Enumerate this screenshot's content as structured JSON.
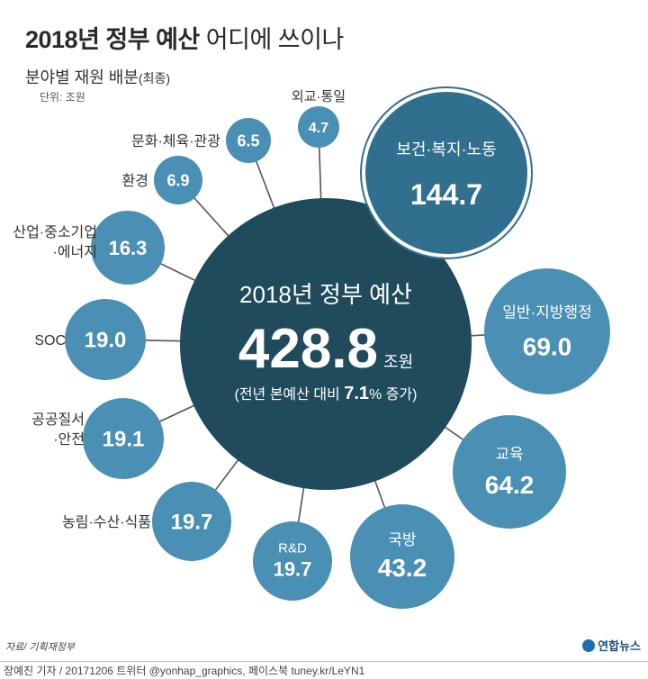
{
  "header": {
    "title_bold": "2018년 정부 예산",
    "title_light": " 어디에 쓰이나",
    "subtitle": "분야별 재원 배분",
    "subtitle_note": "(최종)",
    "unit": "단위: 조원"
  },
  "center": {
    "label": "2018년 정부 예산",
    "value": "428.8",
    "value_unit": "조원",
    "note_prefix": "(전년 본예산 대비 ",
    "note_value": "7.1",
    "note_suffix": "% 증가)"
  },
  "colors": {
    "center": "#1f4b5c",
    "bubble": "#4a8fb4",
    "bubble_dark": "#316f8f",
    "connector": "#555555",
    "text_light": "#ffffff"
  },
  "chart_data": {
    "type": "bubble",
    "unit": "조원",
    "total": 428.8,
    "items": [
      {
        "label": "보건·복지·노동",
        "value": 144.7
      },
      {
        "label": "일반·지방행정",
        "value": 69.0
      },
      {
        "label": "교육",
        "value": 64.2
      },
      {
        "label": "국방",
        "value": 43.2
      },
      {
        "label": "R&D",
        "value": 19.7
      },
      {
        "label": "농림·수산·식품",
        "value": 19.7
      },
      {
        "label": "공공질서·안전",
        "value": 19.1
      },
      {
        "label": "SOC",
        "value": 19.0
      },
      {
        "label": "산업·중소기업·에너지",
        "value": 16.3
      },
      {
        "label": "환경",
        "value": 6.9
      },
      {
        "label": "문화·체육·관광",
        "value": 6.5
      },
      {
        "label": "외교·통일",
        "value": 4.7
      }
    ],
    "display_values": [
      "144.7",
      "69.0",
      "64.2",
      "43.2",
      "19.7",
      "19.7",
      "19.1",
      "19.0",
      "16.3",
      "6.9",
      "6.5",
      "4.7"
    ]
  },
  "footer": {
    "source": "자료/ 기획재정부",
    "credit": "장예진 기자 / 20171206 트위터 @yonhap_graphics, 페이스북 tuney.kr/LeYN1",
    "logo": "연합뉴스"
  }
}
